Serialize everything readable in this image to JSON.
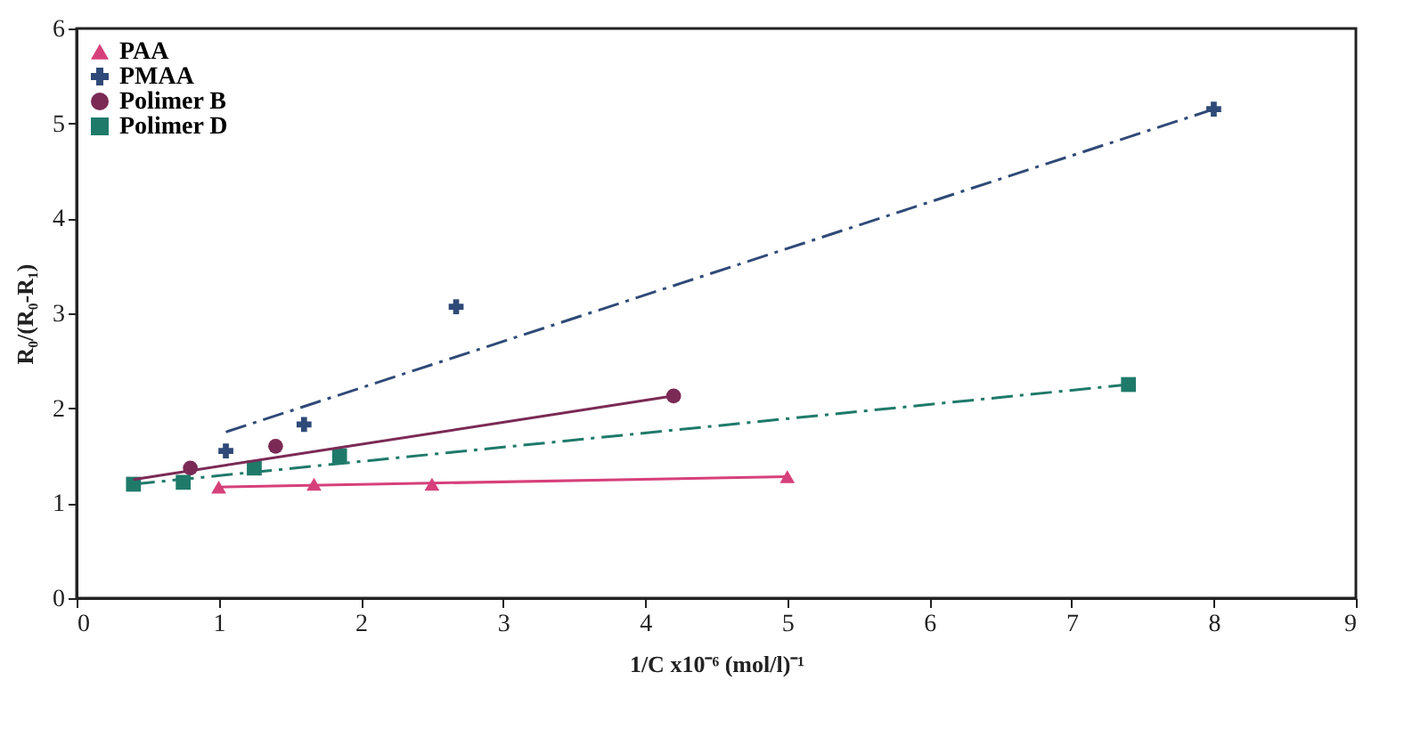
{
  "chart_data": {
    "type": "scatter",
    "xlabel": "1/C x10⁻⁶ (mol/l)⁻¹",
    "ylabel": "R₀/(R₀-R₁)",
    "xlim": [
      0,
      9
    ],
    "xticks": [
      0,
      1,
      2,
      3,
      4,
      5,
      6,
      7,
      8,
      9
    ],
    "ylim": [
      0,
      6
    ],
    "yticks": [
      0,
      1,
      2,
      3,
      4,
      5,
      6
    ],
    "grid": false,
    "legend": "top left",
    "series": [
      {
        "name": "PAA",
        "color": "#d6407a",
        "marker": "triangle",
        "x": [
          1.0,
          1.67,
          2.5,
          5.0
        ],
        "values": [
          1.17,
          1.2,
          1.2,
          1.28
        ]
      },
      {
        "name": "PMAA",
        "color": "#2f4a78",
        "marker": "cross",
        "x": [
          1.05,
          1.6,
          2.67,
          8.0
        ],
        "values": [
          1.55,
          1.83,
          3.07,
          5.15
        ]
      },
      {
        "name": "Polimer B",
        "color": "#7b2a55",
        "marker": "circle",
        "x": [
          0.8,
          1.4,
          4.2
        ],
        "values": [
          1.37,
          1.6,
          2.13
        ]
      },
      {
        "name": "Polimer D",
        "color": "#1f7a6a",
        "marker": "square",
        "x": [
          0.4,
          0.75,
          1.25,
          1.85,
          7.4
        ],
        "values": [
          1.2,
          1.22,
          1.37,
          1.5,
          2.25
        ]
      },
      {
        "type": "line",
        "color": "#d6407a",
        "line_style": "solid",
        "x": [
          1.0,
          5.0
        ],
        "values": [
          1.17,
          1.28
        ]
      },
      {
        "type": "line",
        "color": "#2f4a78",
        "line_style": "dashed",
        "x": [
          1.05,
          8.0
        ],
        "values": [
          1.75,
          5.15
        ]
      },
      {
        "type": "line",
        "color": "#7b2a55",
        "line_style": "solid",
        "x": [
          0.4,
          4.2
        ],
        "values": [
          1.25,
          2.13
        ]
      },
      {
        "type": "line",
        "color": "#1f7a6a",
        "line_style": "dashed",
        "x": [
          0.4,
          7.4
        ],
        "values": [
          1.2,
          2.25
        ]
      }
    ]
  }
}
